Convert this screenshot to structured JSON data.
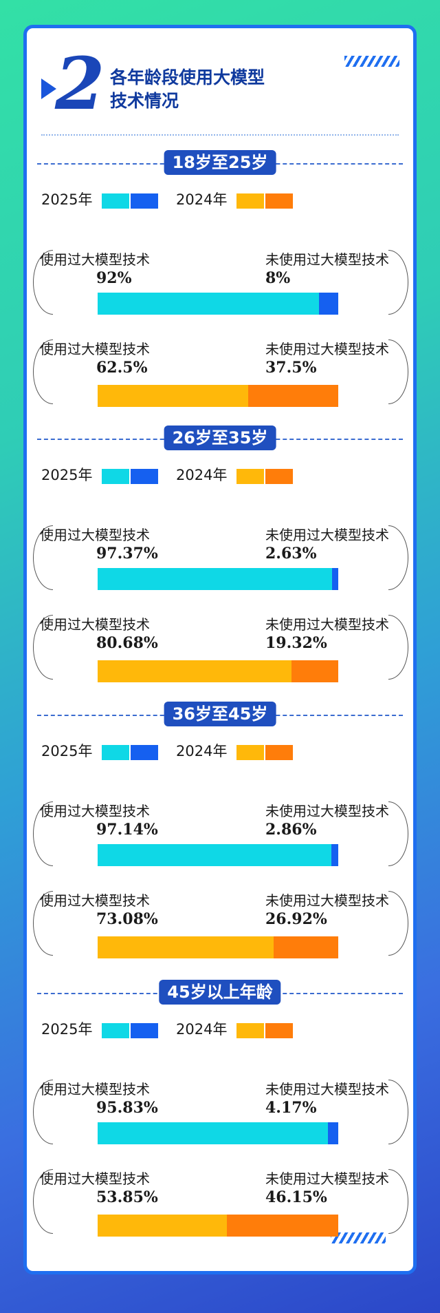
{
  "header": {
    "number": "2",
    "title_line1": "各年龄段使用大模型",
    "title_line2": "技术情况"
  },
  "legend": {
    "year_2025": "2025年",
    "year_2024": "2024年"
  },
  "colors": {
    "used_2025": "#0fd8e6",
    "not_used_2025": "#1560f0",
    "used_2024": "#ffb80a",
    "not_used_2024": "#ff7d0a",
    "accent": "#1f4fbf"
  },
  "labels": {
    "used": "使用过大模型技术",
    "not_used": "未使用过大模型技术"
  },
  "groups": [
    {
      "name": "18岁至25岁",
      "rows": [
        {
          "year": "2025",
          "used": "92%",
          "not_used": "8%"
        },
        {
          "year": "2024",
          "used": "62.5%",
          "not_used": "37.5%"
        }
      ]
    },
    {
      "name": "26岁至35岁",
      "rows": [
        {
          "year": "2025",
          "used": "97.37%",
          "not_used": "2.63%"
        },
        {
          "year": "2024",
          "used": "80.68%",
          "not_used": "19.32%"
        }
      ]
    },
    {
      "name": "36岁至45岁",
      "rows": [
        {
          "year": "2025",
          "used": "97.14%",
          "not_used": "2.86%"
        },
        {
          "year": "2024",
          "used": "73.08%",
          "not_used": "26.92%"
        }
      ]
    },
    {
      "name": "45岁以上年龄",
      "rows": [
        {
          "year": "2025",
          "used": "95.83%",
          "not_used": "4.17%"
        },
        {
          "year": "2024",
          "used": "53.85%",
          "not_used": "46.15%"
        }
      ]
    }
  ],
  "chart_data": {
    "type": "bar",
    "categories": [
      "18岁至25岁",
      "26岁至35岁",
      "36岁至45岁",
      "45岁以上年龄"
    ],
    "series": [
      {
        "name": "2025年",
        "used": [
          92,
          97.37,
          97.14,
          95.83
        ],
        "not_used": [
          8,
          2.63,
          2.86,
          4.17
        ]
      },
      {
        "name": "2024年",
        "used": [
          62.5,
          80.68,
          73.08,
          53.85
        ],
        "not_used": [
          37.5,
          19.32,
          26.92,
          46.15
        ]
      }
    ],
    "stacked": true,
    "ylim": [
      0,
      100
    ]
  }
}
